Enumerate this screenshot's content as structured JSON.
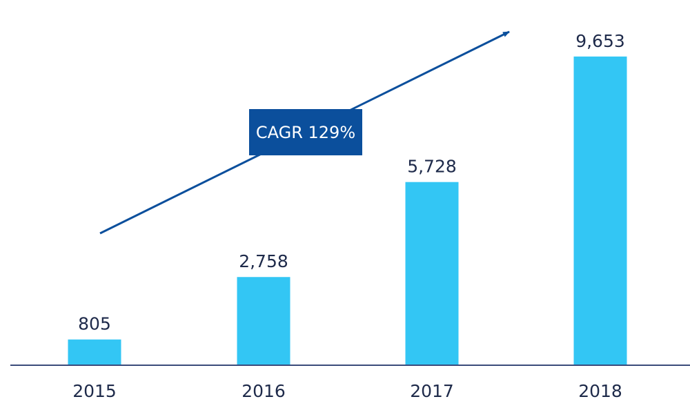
{
  "chart_data": {
    "type": "bar",
    "title": "",
    "xlabel": "",
    "ylabel": "",
    "categories": [
      "2015",
      "2016",
      "2017",
      "2018"
    ],
    "values": [
      805,
      2758,
      5728,
      9653
    ],
    "value_labels": [
      "805",
      "2,758",
      "5,728",
      "9,653"
    ],
    "ylim": [
      0,
      10600
    ],
    "grid": false,
    "legend": "none",
    "annotation": {
      "text": "CAGR 129%",
      "kind": "trend-arrow"
    }
  },
  "colors": {
    "bar": "#33c6f4",
    "axis": "#3a4a7a",
    "arrow": "#0b4f9c",
    "annotation_box": "#0b4f9c",
    "annotation_text": "#ffffff",
    "text": "#1e2a4a"
  }
}
